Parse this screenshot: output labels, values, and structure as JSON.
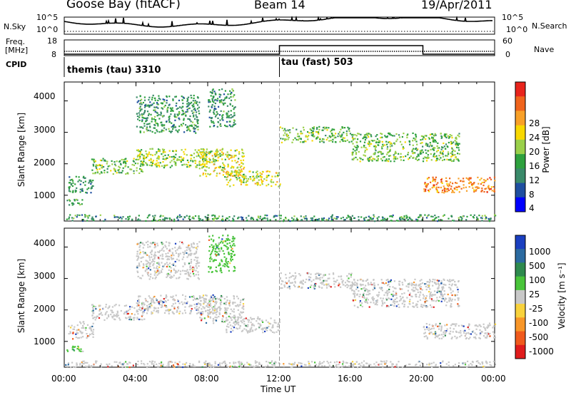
{
  "header": {
    "station": "Goose Bay (fitACF)",
    "beam": "Beam 14",
    "date": "19/Apr/2011"
  },
  "noise_panel": {
    "left_label": "N.Sky",
    "right_label": "N.Search",
    "left_ticks": [
      "10^5",
      "10^0"
    ],
    "right_ticks": [
      "10^5",
      "10^0"
    ]
  },
  "freq_panel": {
    "left_label_1": "Freq.",
    "left_label_2": "[MHz]",
    "right_label": "Nave",
    "left_ticks": [
      "18",
      "8"
    ],
    "right_ticks": [
      "60",
      "0"
    ]
  },
  "cpid_panel": {
    "label": "CPID",
    "modes": [
      {
        "name": "themis (tau) 3310",
        "start_hour": 0
      },
      {
        "name": "tau (fast) 503",
        "start_hour": 12
      }
    ]
  },
  "power_panel": {
    "ylabel": "Slant Range [km]",
    "colorbar_label": "Power [dB]",
    "colorbar_ticks": [
      "28",
      "24",
      "20",
      "16",
      "12",
      "8",
      "4"
    ],
    "colorbar_colors": [
      "#e8241c",
      "#f0641c",
      "#f8a028",
      "#f8d800",
      "#9ad04a",
      "#2ea13e",
      "#3a8a6a",
      "#1f4fa0",
      "#0000ff"
    ]
  },
  "velocity_panel": {
    "ylabel": "Slant Range [km]",
    "colorbar_label": "Velocity [m s⁻¹]",
    "colorbar_ticks": [
      "1000",
      "500",
      "100",
      "25",
      "-25",
      "-100",
      "-500",
      "-1000"
    ],
    "colorbar_colors": [
      "#1a3fc0",
      "#2b6aa0",
      "#2e8a4e",
      "#49c43a",
      "#c8c8c8",
      "#f8d23c",
      "#f89628",
      "#f05a1c",
      "#e01c1c"
    ]
  },
  "x_axis": {
    "label": "Time UT",
    "ticks": [
      "00:00",
      "04:00",
      "08:00",
      "12:00",
      "16:00",
      "20:00",
      "00:00"
    ]
  },
  "chart_data": {
    "type": "heatmap",
    "title": "Goose Bay (fitACF)  Beam 14  19/Apr/2011",
    "xlabel": "Time UT",
    "ylabel": "Slant Range [km]",
    "xlim_hours": [
      0,
      24
    ],
    "ylim_km": [
      180,
      4600
    ],
    "yticks": [
      1000,
      2000,
      3000,
      4000
    ],
    "panels": [
      "Power [dB]",
      "Velocity [m s⁻¹]"
    ],
    "echo_regions": [
      {
        "t0": 0.0,
        "t1": 1.0,
        "r0": 700,
        "r1": 900,
        "power": 8,
        "velocity": 100
      },
      {
        "t0": 0.2,
        "t1": 1.6,
        "r0": 1100,
        "r1": 1650,
        "power": 6,
        "velocity": 25
      },
      {
        "t0": 1.5,
        "t1": 4.5,
        "r0": 1700,
        "r1": 2200,
        "power": 10,
        "velocity": 0
      },
      {
        "t0": 4.0,
        "t1": 8.5,
        "r0": 1900,
        "r1": 2500,
        "power": 12,
        "velocity": 0
      },
      {
        "t0": 7.5,
        "t1": 10.0,
        "r0": 1600,
        "r1": 2500,
        "power": 14,
        "velocity": 0
      },
      {
        "t0": 9.0,
        "t1": 12.0,
        "r0": 1300,
        "r1": 1800,
        "power": 14,
        "velocity": 0
      },
      {
        "t0": 4.0,
        "t1": 7.5,
        "r0": 3000,
        "r1": 4200,
        "power": 6,
        "velocity": 25
      },
      {
        "t0": 8.0,
        "t1": 9.5,
        "r0": 3200,
        "r1": 4400,
        "power": 6,
        "velocity": 100
      },
      {
        "t0": 12.0,
        "t1": 16.0,
        "r0": 2700,
        "r1": 3200,
        "power": 10,
        "velocity": 0
      },
      {
        "t0": 16.0,
        "t1": 22.0,
        "r0": 2100,
        "r1": 3000,
        "power": 10,
        "velocity": 0
      },
      {
        "t0": 20.0,
        "t1": 24.0,
        "r0": 1100,
        "r1": 1600,
        "power": 22,
        "velocity": 0
      },
      {
        "t0": 0.0,
        "t1": 24.0,
        "r0": 200,
        "r1": 400,
        "power": 6,
        "velocity": 25
      }
    ],
    "cpid_change_hour": 12,
    "freq_step": {
      "before_hour_20_mhz": 10,
      "nave_high_hours": [
        12,
        20
      ]
    }
  }
}
